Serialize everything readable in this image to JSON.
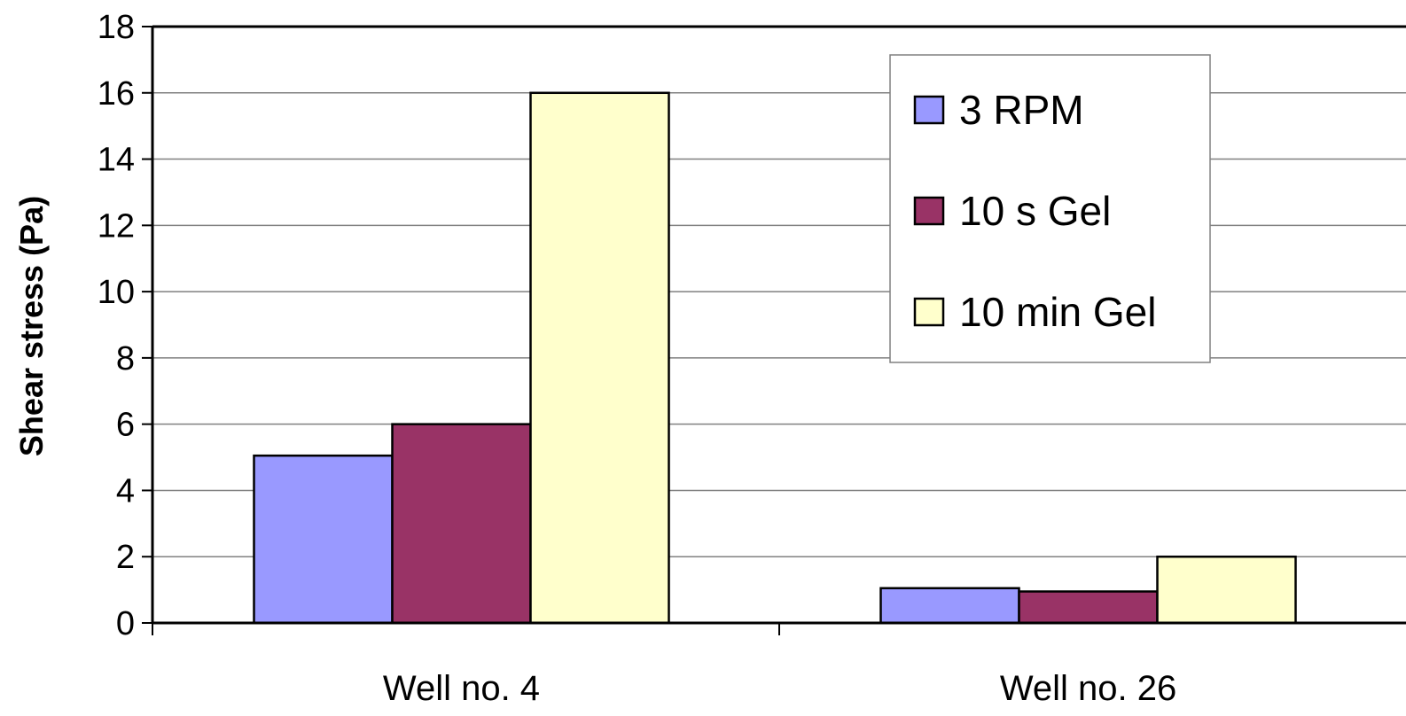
{
  "chart_data": {
    "type": "bar",
    "title": "",
    "xlabel": "",
    "ylabel": "Shear stress (Pa)",
    "ylim": [
      0,
      18
    ],
    "ytick_step": 2,
    "grid": true,
    "legend_position": "top-right",
    "categories": [
      "Well no. 4",
      "Well no. 26"
    ],
    "series": [
      {
        "name": "3 RPM",
        "color": "#9999ff",
        "values": [
          5.05,
          1.05
        ]
      },
      {
        "name": "10 s Gel",
        "color": "#993366",
        "values": [
          6,
          0.95
        ]
      },
      {
        "name": "10 min Gel",
        "color": "#ffffcc",
        "values": [
          16,
          2
        ]
      }
    ]
  }
}
